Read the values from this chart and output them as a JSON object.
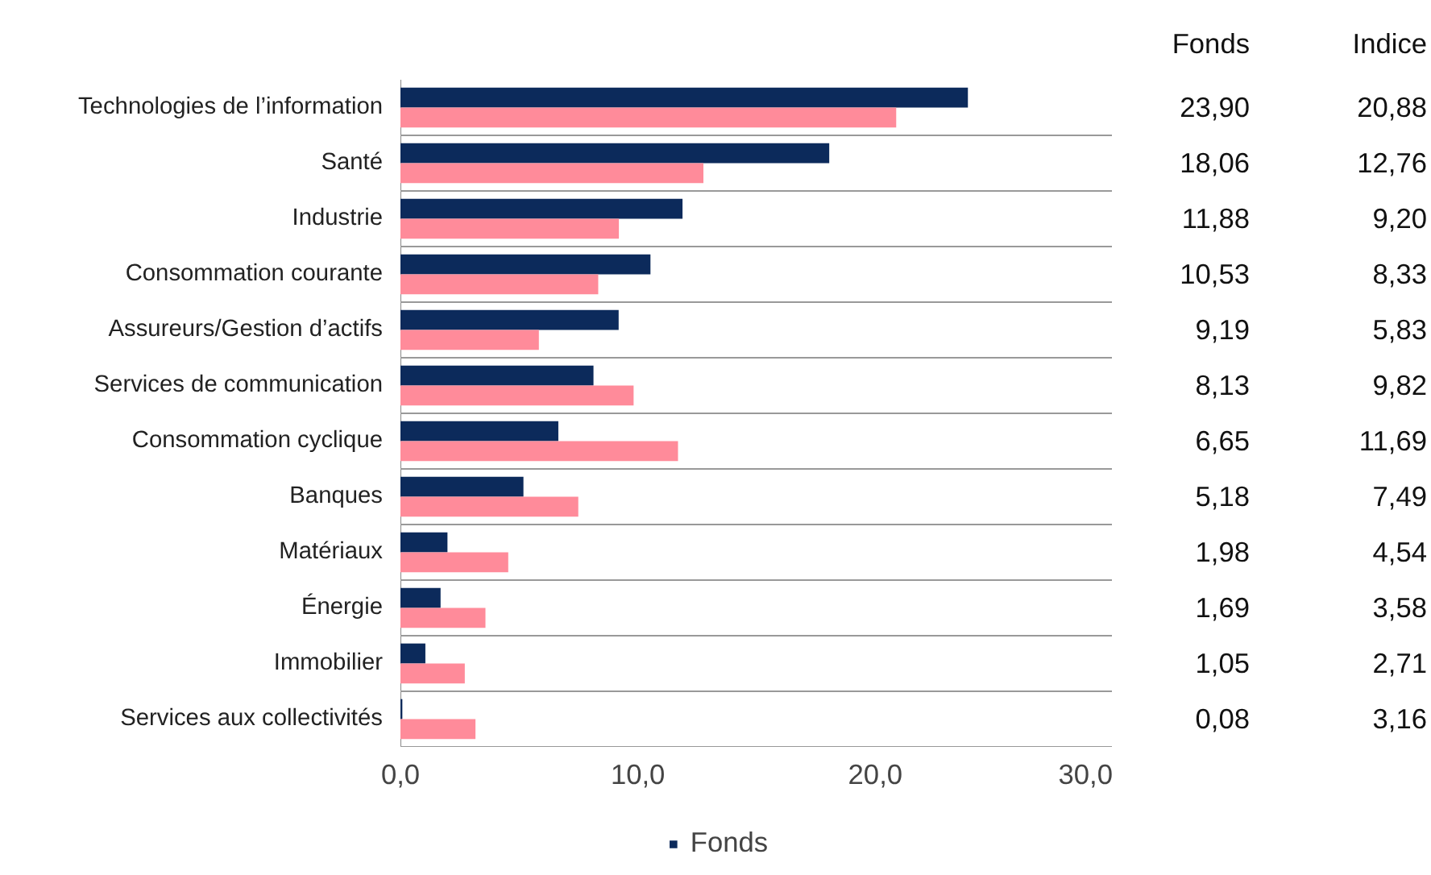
{
  "chart_data": {
    "type": "bar",
    "orientation": "horizontal",
    "categories": [
      "Technologies de l’information",
      "Santé",
      "Industrie",
      "Consommation courante",
      "Assureurs/Gestion d’actifs",
      "Services de communication",
      "Consommation cyclique",
      "Banques",
      "Matériaux",
      "Énergie",
      "Immobilier",
      "Services aux collectivités"
    ],
    "series": [
      {
        "name": "Fonds",
        "color": "#0c2a5b",
        "values": [
          23.9,
          18.06,
          11.88,
          10.53,
          9.19,
          8.13,
          6.65,
          5.18,
          1.98,
          1.69,
          1.05,
          0.08
        ],
        "value_labels": [
          "23,90",
          "18,06",
          "11,88",
          "10,53",
          "9,19",
          "8,13",
          "6,65",
          "5,18",
          "1,98",
          "1,69",
          "1,05",
          "0,08"
        ]
      },
      {
        "color": "#ff8b9a",
        "values": [
          20.88,
          12.76,
          9.2,
          8.33,
          5.83,
          9.82,
          11.69,
          7.49,
          4.54,
          3.58,
          2.71,
          3.16
        ],
        "value_labels": [
          "20,88",
          "12,76",
          "9,20",
          "8,33",
          "5,83",
          "9,82",
          "11,69",
          "7,49",
          "4,54",
          "3,58",
          "2,71",
          "3,16"
        ]
      }
    ],
    "xlim": [
      0,
      30
    ],
    "xticks": [
      {
        "value": 0,
        "label": "0,0"
      },
      {
        "value": 10,
        "label": "10,0"
      },
      {
        "value": 20,
        "label": "20,0"
      },
      {
        "value": 30,
        "label": "30,0"
      }
    ],
    "grid": "y",
    "legend": "bottom",
    "annotations": [
      "Fonds",
      "Indice"
    ]
  }
}
